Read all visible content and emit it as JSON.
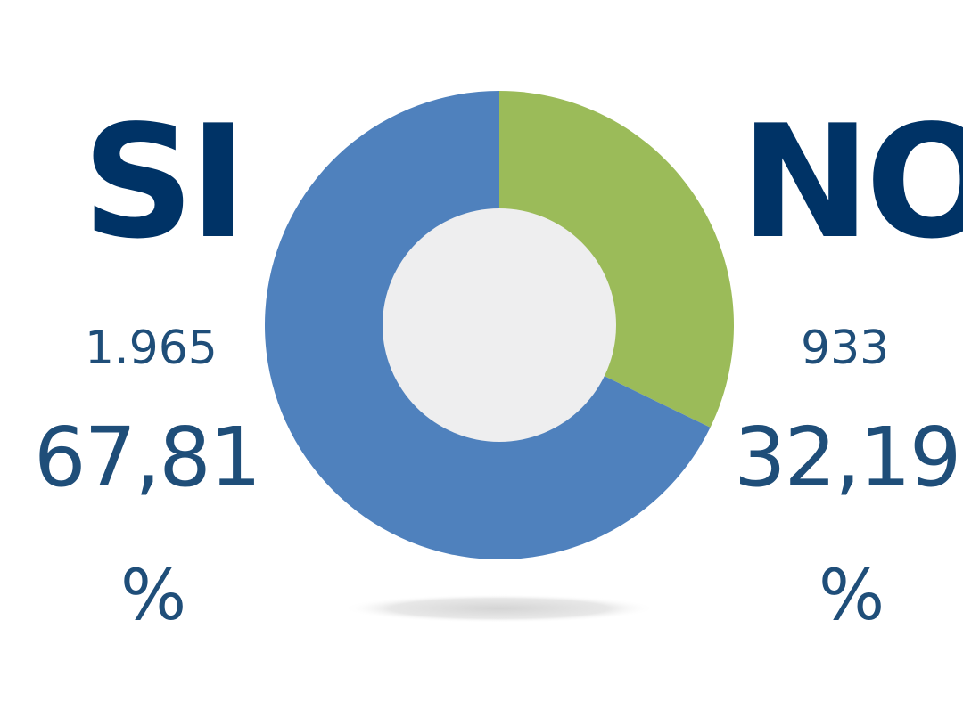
{
  "chart_data": {
    "type": "pie",
    "variant": "donut",
    "categories": [
      "SI",
      "NO"
    ],
    "values": [
      1965,
      933
    ],
    "percentages": [
      "67,81",
      "32,19"
    ],
    "counts_text": [
      "1.965",
      "933"
    ],
    "percent_sign": "%",
    "colors": [
      "#4f81bd",
      "#9bbb59"
    ],
    "hole_color": "#eeeeef",
    "label_color": "#003366",
    "value_color": "#1f4e79"
  }
}
